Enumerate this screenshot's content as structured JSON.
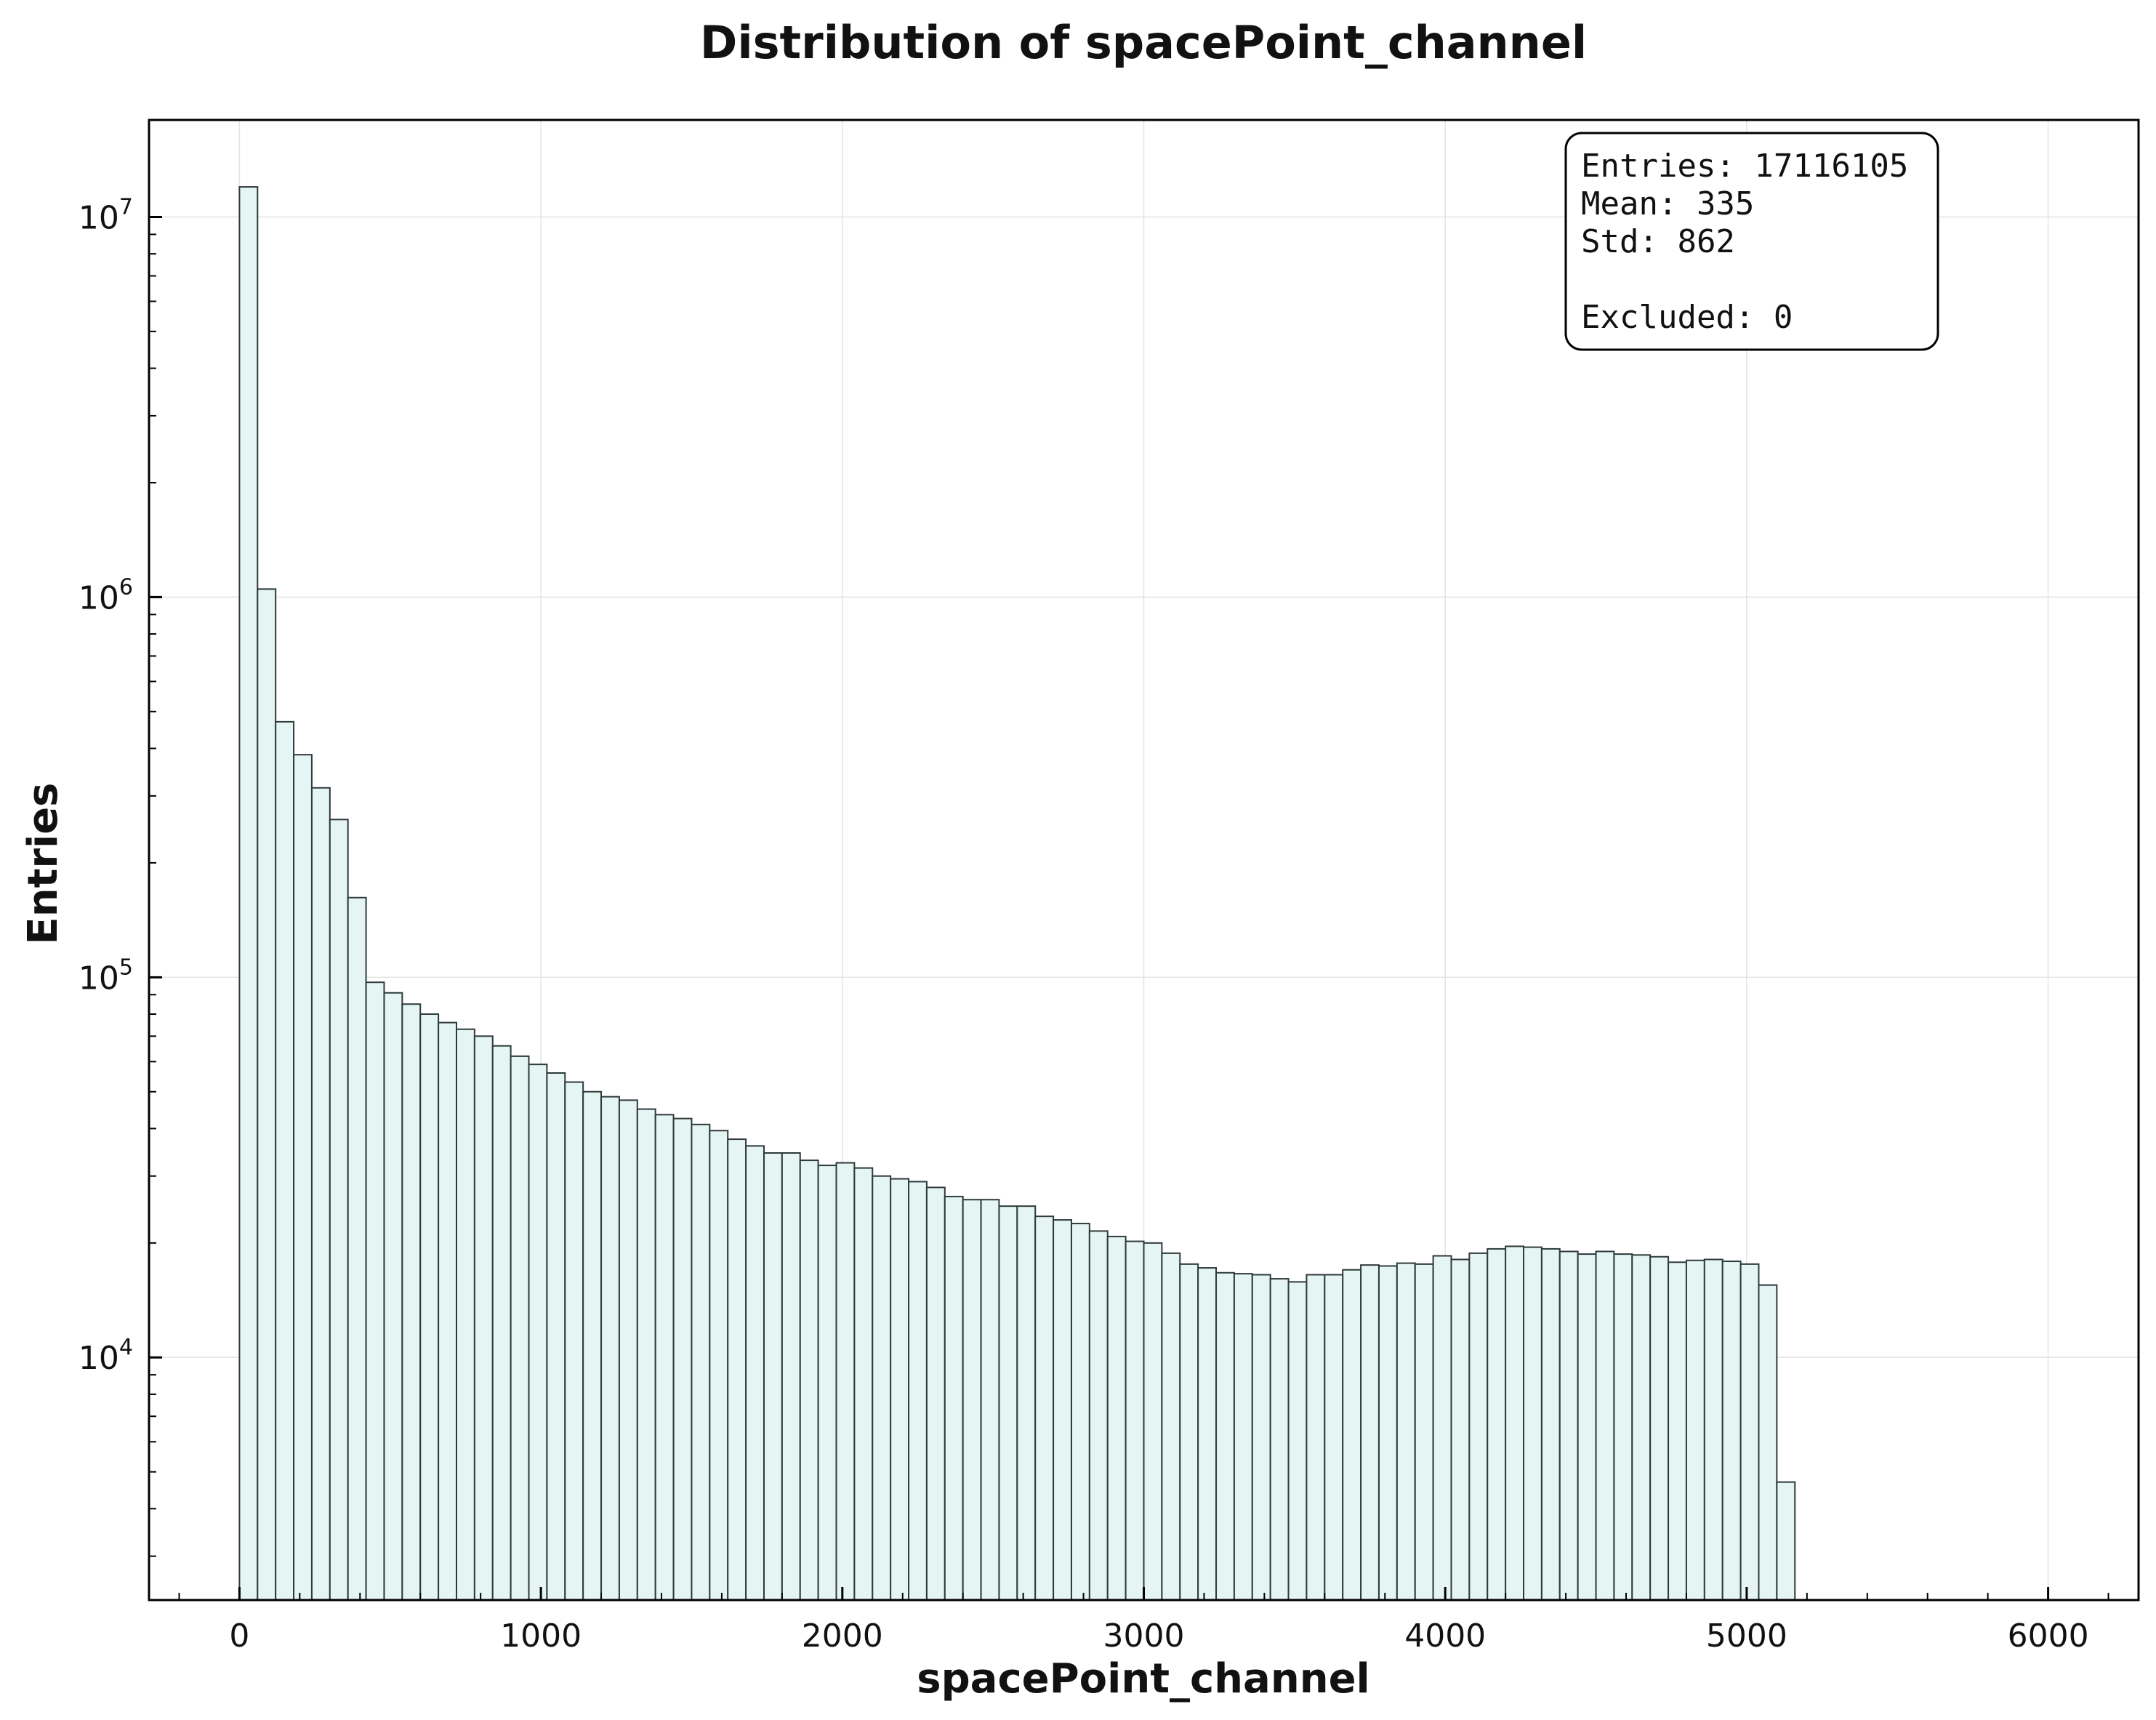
{
  "colors": {
    "bar_fill": "#e4f5f4",
    "bar_stroke": "#2f3a3a",
    "grid": "#e3e3e3",
    "axis": "#000000"
  },
  "chart_data": {
    "type": "bar",
    "title": "Distribution of spacePoint_channel",
    "xlabel": "spacePoint_channel",
    "ylabel": "Entries",
    "y_scale": "log",
    "xlim": [
      -300,
      6300
    ],
    "ylim": [
      2300,
      18000000
    ],
    "grid": true,
    "legend": "none",
    "x_ticks": [
      0,
      1000,
      2000,
      3000,
      4000,
      5000,
      6000
    ],
    "x_tick_labels": [
      "0",
      "1000",
      "2000",
      "3000",
      "4000",
      "5000",
      "6000"
    ],
    "y_ticks": [
      10000,
      100000,
      1000000,
      10000000
    ],
    "y_tick_labels": [
      {
        "base": "10",
        "exp": "4"
      },
      {
        "base": "10",
        "exp": "5"
      },
      {
        "base": "10",
        "exp": "6"
      },
      {
        "base": "10",
        "exp": "7"
      }
    ],
    "bin_width": 60,
    "bin_start": 0,
    "values": [
      12000000,
      1050000,
      470000,
      385000,
      315000,
      260000,
      162000,
      97000,
      91000,
      85000,
      80000,
      76000,
      73000,
      70000,
      66000,
      62000,
      59000,
      56000,
      53000,
      50000,
      48500,
      47500,
      45000,
      43500,
      42500,
      41000,
      39500,
      37500,
      36000,
      34500,
      34500,
      33000,
      32000,
      32500,
      31500,
      30000,
      29500,
      29000,
      28000,
      26500,
      26000,
      26000,
      25000,
      25000,
      23500,
      23000,
      22500,
      21500,
      20800,
      20200,
      20000,
      18800,
      17600,
      17200,
      16700,
      16600,
      16500,
      16100,
      15800,
      16500,
      16500,
      17000,
      17500,
      17400,
      17700,
      17600,
      18500,
      18100,
      18800,
      19300,
      19600,
      19500,
      19300,
      19000,
      18700,
      19000,
      18700,
      18600,
      18400,
      17800,
      18000,
      18100,
      17900,
      17600,
      15500,
      4700
    ],
    "annotations": [
      {
        "key": "entries",
        "label": "Entries: 17116105"
      },
      {
        "key": "mean",
        "label": "Mean: 335"
      },
      {
        "key": "std",
        "label": "Std: 862"
      },
      {
        "key": "excluded",
        "label": "Excluded: 0"
      }
    ]
  }
}
